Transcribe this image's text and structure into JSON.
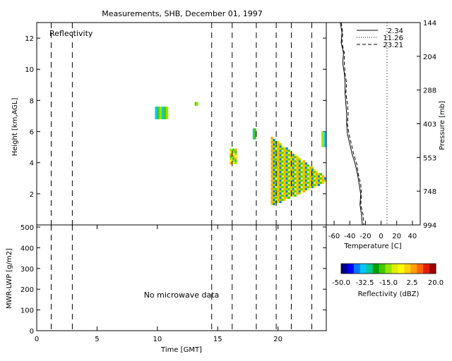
{
  "title": "Measurements, SHB, December 01, 1997",
  "panel_label": "Reflectivity",
  "no_data_text": "No microwave data",
  "colors": {
    "frame": "#000000",
    "colorbar": [
      "#00008c",
      "#0000ff",
      "#0078ff",
      "#00c8ff",
      "#00c896",
      "#00a000",
      "#46c800",
      "#96e600",
      "#dcf000",
      "#ffff00",
      "#ffd200",
      "#ffa000",
      "#ff6400",
      "#e61e00",
      "#a00000"
    ]
  },
  "chart_data": [
    {
      "type": "heatmap",
      "name": "reflectivity",
      "xlabel": "Time [GMT]",
      "ylabel": "Height [km,AGL]",
      "xlim": [
        0,
        24
      ],
      "ylim": [
        0,
        13
      ],
      "x_ticks": [
        "0",
        "5",
        "10",
        "15",
        "20"
      ],
      "y_ticks": [
        "2",
        "4",
        "6",
        "8",
        "10",
        "12"
      ],
      "dashed_times": [
        1.2,
        2.95,
        14.5,
        16.2,
        18.2,
        19.85,
        21.1,
        22.8
      ],
      "echo_patches": [
        {
          "t0": 9.8,
          "t1": 10.9,
          "h0": 6.8,
          "h1": 7.6,
          "level": "low"
        },
        {
          "t0": 13.1,
          "t1": 13.3,
          "h0": 7.7,
          "h1": 7.9,
          "level": "low"
        },
        {
          "t0": 16.0,
          "t1": 16.6,
          "h0": 3.9,
          "h1": 4.9,
          "level": "mid"
        },
        {
          "t0": 17.9,
          "t1": 18.1,
          "h0": 5.5,
          "h1": 6.2,
          "level": "low"
        },
        {
          "t0": 19.4,
          "t1": 24.0,
          "h0": 1.0,
          "h1": 5.8,
          "level": "high"
        },
        {
          "t0": 23.6,
          "t1": 24.0,
          "h0": 5.0,
          "h1": 6.0,
          "level": "low"
        }
      ]
    },
    {
      "type": "line",
      "name": "sounding",
      "xlabel": "Temperature [C]",
      "ylabel": "Pressure [mb]",
      "x_ticks": [
        "-60",
        "-40",
        "-20",
        "0",
        "20",
        "40"
      ],
      "xlim": [
        -70,
        50
      ],
      "y_ticks": [
        "144",
        "204",
        "288",
        "403",
        "553",
        "748",
        "994"
      ],
      "legend": [
        {
          "label": "2.34",
          "style": "solid"
        },
        {
          "label": "11.26",
          "style": "dotted"
        },
        {
          "label": "23.21",
          "style": "dashed"
        }
      ],
      "series": [
        {
          "style": "solid",
          "temp": [
            -52,
            -50,
            -51,
            -48,
            -49,
            -47,
            -46,
            -46,
            -45,
            -44,
            -44,
            -43,
            -40,
            -37,
            -33,
            -30,
            -28,
            -26,
            -27,
            -25,
            -24
          ]
        },
        {
          "style": "dashed",
          "temp": [
            -51,
            -49,
            -50,
            -47,
            -47,
            -46,
            -44,
            -45,
            -43,
            -42,
            -43,
            -41,
            -38,
            -35,
            -31,
            -29,
            -26,
            -25,
            -26,
            -23,
            -22
          ]
        }
      ]
    },
    {
      "type": "line",
      "name": "lwp",
      "xlabel": "Time [GMT]",
      "ylabel": "MWR-LWP [g/m2]",
      "xlim": [
        0,
        24
      ],
      "ylim": [
        0,
        500
      ],
      "y_ticks": [
        "0",
        "100",
        "200",
        "300",
        "400",
        "500"
      ],
      "x_ticks": [
        "0",
        "5",
        "10",
        "15",
        "20"
      ]
    },
    {
      "type": "colorbar",
      "name": "reflectivity-scale",
      "label": "Reflectivity (dBZ)",
      "range": [
        -50,
        20
      ],
      "ticks": [
        "-50.0",
        "-32.5",
        "-15.0",
        "2.5",
        "20.0"
      ]
    }
  ]
}
